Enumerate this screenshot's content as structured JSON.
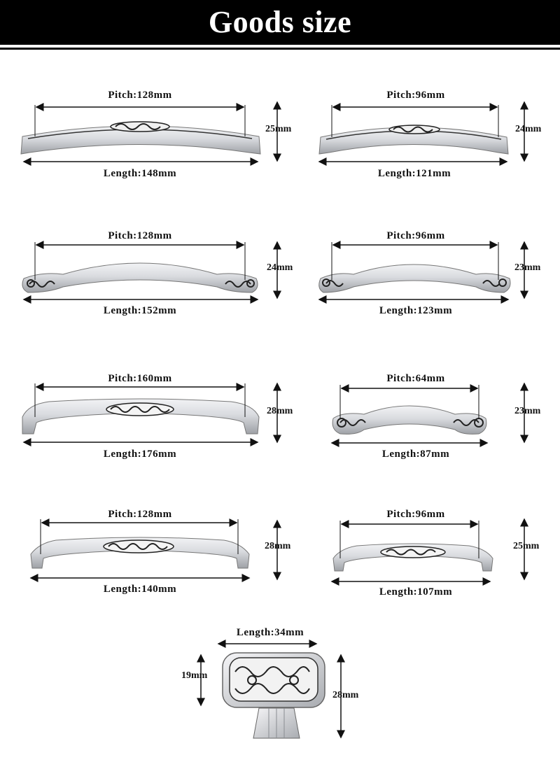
{
  "header": {
    "title": "Goods size"
  },
  "products": [
    {
      "pitch": "Pitch:128mm",
      "length": "Length:148mm",
      "height": "25mm"
    },
    {
      "pitch": "Pitch:96mm",
      "length": "Length:121mm",
      "height": "24mm"
    },
    {
      "pitch": "Pitch:128mm",
      "length": "Length:152mm",
      "height": "24mm"
    },
    {
      "pitch": "Pitch:96mm",
      "length": "Length:123mm",
      "height": "23mm"
    },
    {
      "pitch": "Pitch:160mm",
      "length": "Length:176mm",
      "height": "28mm"
    },
    {
      "pitch": "Pitch:64mm",
      "length": "Length:87mm",
      "height": "23mm"
    },
    {
      "pitch": "Pitch:128mm",
      "length": "Length:140mm",
      "height": "28mm"
    },
    {
      "pitch": "Pitch:96mm",
      "length": "Length:107mm",
      "height": "25mm"
    }
  ],
  "knob": {
    "length": "Length:34mm",
    "top_height": "19mm",
    "total_height": "28mm"
  },
  "colors": {
    "header_bg": "#000000",
    "header_text": "#ffffff",
    "handle_silver": "#d6d8dc",
    "ornament": "#2a2a2a"
  }
}
